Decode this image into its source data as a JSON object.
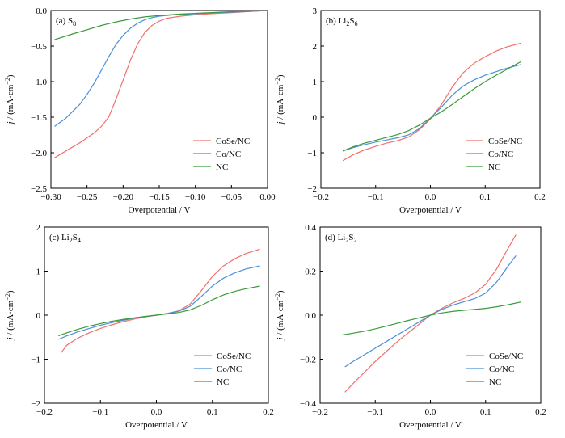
{
  "colors": {
    "CoSe/NC": "#f0706c",
    "Co/NC": "#4a90d9",
    "NC": "#3a9a3a"
  },
  "chart_data": [
    {
      "type": "line",
      "panel_label": "(a) S8",
      "label_prefix": "(a) S",
      "label_subs": [
        "8"
      ],
      "xlabel": "Overpotential / V",
      "ylabel": "j / (mA·cm⁻²)",
      "xlim": [
        -0.3,
        0.0
      ],
      "ylim": [
        -2.5,
        0.0
      ],
      "xticks": [
        -0.3,
        -0.25,
        -0.2,
        -0.15,
        -0.1,
        -0.05,
        0.0
      ],
      "xtick_labels": [
        "−0.30",
        "−0.25",
        "−0.20",
        "−0.15",
        "−0.10",
        "−0.05",
        "0.00"
      ],
      "yticks": [
        -2.5,
        -2.0,
        -1.5,
        -1.0,
        -0.5,
        0.0
      ],
      "ytick_labels": [
        "−2.5",
        "−2.0",
        "−1.5",
        "−1.0",
        "−0.5",
        "0.0"
      ],
      "legend_position": "lower-right",
      "series": [
        {
          "name": "CoSe/NC",
          "x": [
            -0.295,
            -0.28,
            -0.26,
            -0.24,
            -0.23,
            -0.22,
            -0.21,
            -0.2,
            -0.19,
            -0.18,
            -0.17,
            -0.16,
            -0.15,
            -0.14,
            -0.12,
            -0.1,
            -0.08,
            -0.05,
            -0.02,
            0.0
          ],
          "y": [
            -2.07,
            -1.98,
            -1.86,
            -1.72,
            -1.63,
            -1.5,
            -1.25,
            -0.98,
            -0.7,
            -0.47,
            -0.31,
            -0.21,
            -0.15,
            -0.11,
            -0.08,
            -0.06,
            -0.045,
            -0.03,
            -0.01,
            0.0
          ]
        },
        {
          "name": "Co/NC",
          "x": [
            -0.295,
            -0.28,
            -0.26,
            -0.25,
            -0.24,
            -0.23,
            -0.22,
            -0.21,
            -0.2,
            -0.19,
            -0.18,
            -0.17,
            -0.16,
            -0.15,
            -0.13,
            -0.1,
            -0.07,
            -0.04,
            -0.02,
            0.0
          ],
          "y": [
            -1.63,
            -1.52,
            -1.32,
            -1.18,
            -1.02,
            -0.84,
            -0.65,
            -0.48,
            -0.35,
            -0.25,
            -0.18,
            -0.13,
            -0.1,
            -0.08,
            -0.06,
            -0.045,
            -0.03,
            -0.02,
            -0.01,
            0.0
          ]
        },
        {
          "name": "NC",
          "x": [
            -0.295,
            -0.27,
            -0.25,
            -0.23,
            -0.21,
            -0.19,
            -0.17,
            -0.15,
            -0.12,
            -0.09,
            -0.06,
            -0.03,
            0.0
          ],
          "y": [
            -0.41,
            -0.33,
            -0.27,
            -0.21,
            -0.16,
            -0.12,
            -0.09,
            -0.07,
            -0.05,
            -0.035,
            -0.02,
            -0.01,
            0.0
          ]
        }
      ]
    },
    {
      "type": "line",
      "panel_label": "(b) Li2S6",
      "label_prefix": "(b) Li",
      "label_subs": [
        "2",
        "S",
        "6"
      ],
      "xlabel": "Overpotential / V",
      "ylabel": "j / (mA·cm⁻²)",
      "xlim": [
        -0.2,
        0.2
      ],
      "ylim": [
        -2,
        3
      ],
      "xticks": [
        -0.2,
        -0.1,
        0.0,
        0.1,
        0.2
      ],
      "xtick_labels": [
        "−0.2",
        "−0.1",
        "0.0",
        "0.1",
        "0.2"
      ],
      "yticks": [
        -2,
        -1,
        0,
        1,
        2,
        3
      ],
      "ytick_labels": [
        "−2",
        "−1",
        "0",
        "1",
        "2",
        "3"
      ],
      "legend_position": "lower-right",
      "series": [
        {
          "name": "CoSe/NC",
          "x": [
            -0.16,
            -0.14,
            -0.12,
            -0.1,
            -0.08,
            -0.06,
            -0.04,
            -0.02,
            0.0,
            0.02,
            0.04,
            0.06,
            0.08,
            0.1,
            0.12,
            0.14,
            0.165
          ],
          "y": [
            -1.22,
            -1.05,
            -0.92,
            -0.82,
            -0.73,
            -0.66,
            -0.56,
            -0.35,
            -0.05,
            0.35,
            0.85,
            1.25,
            1.52,
            1.7,
            1.86,
            1.98,
            2.08
          ]
        },
        {
          "name": "Co/NC",
          "x": [
            -0.16,
            -0.14,
            -0.12,
            -0.1,
            -0.08,
            -0.06,
            -0.04,
            -0.02,
            0.0,
            0.02,
            0.04,
            0.06,
            0.08,
            0.1,
            0.12,
            0.14,
            0.165
          ],
          "y": [
            -0.95,
            -0.85,
            -0.77,
            -0.7,
            -0.64,
            -0.58,
            -0.5,
            -0.32,
            -0.03,
            0.28,
            0.62,
            0.88,
            1.05,
            1.18,
            1.28,
            1.38,
            1.48
          ]
        },
        {
          "name": "NC",
          "x": [
            -0.16,
            -0.14,
            -0.12,
            -0.1,
            -0.08,
            -0.06,
            -0.04,
            -0.02,
            0.0,
            0.02,
            0.04,
            0.06,
            0.08,
            0.1,
            0.12,
            0.14,
            0.165
          ],
          "y": [
            -0.95,
            -0.83,
            -0.73,
            -0.65,
            -0.57,
            -0.49,
            -0.38,
            -0.22,
            -0.03,
            0.15,
            0.36,
            0.58,
            0.8,
            1.0,
            1.18,
            1.35,
            1.56
          ]
        }
      ]
    },
    {
      "type": "line",
      "panel_label": "(c) Li2S4",
      "label_prefix": "(c) Li",
      "label_subs": [
        "2",
        "S",
        "4"
      ],
      "xlabel": "Overpotential / V",
      "ylabel": "j / (mA·cm⁻²)",
      "xlim": [
        -0.2,
        0.2
      ],
      "ylim": [
        -2,
        2
      ],
      "xticks": [
        -0.2,
        -0.1,
        0.0,
        0.1,
        0.2
      ],
      "xtick_labels": [
        "−0.2",
        "−0.1",
        "0.0",
        "0.1",
        "0.2"
      ],
      "yticks": [
        -2,
        -1,
        0,
        1,
        2
      ],
      "ytick_labels": [
        "−2",
        "−1",
        "0",
        "1",
        "2"
      ],
      "legend_position": "lower-right",
      "series": [
        {
          "name": "CoSe/NC",
          "x": [
            -0.17,
            -0.16,
            -0.14,
            -0.12,
            -0.1,
            -0.08,
            -0.06,
            -0.04,
            -0.02,
            0.0,
            0.02,
            0.04,
            0.06,
            0.08,
            0.1,
            0.12,
            0.14,
            0.16,
            0.185
          ],
          "y": [
            -0.85,
            -0.68,
            -0.52,
            -0.4,
            -0.3,
            -0.22,
            -0.15,
            -0.09,
            -0.04,
            0.0,
            0.04,
            0.1,
            0.25,
            0.55,
            0.88,
            1.12,
            1.28,
            1.4,
            1.5
          ]
        },
        {
          "name": "Co/NC",
          "x": [
            -0.175,
            -0.16,
            -0.14,
            -0.12,
            -0.1,
            -0.08,
            -0.06,
            -0.04,
            -0.02,
            0.0,
            0.02,
            0.04,
            0.06,
            0.08,
            0.1,
            0.12,
            0.14,
            0.16,
            0.185
          ],
          "y": [
            -0.55,
            -0.47,
            -0.38,
            -0.3,
            -0.23,
            -0.17,
            -0.12,
            -0.07,
            -0.03,
            0.0,
            0.04,
            0.09,
            0.2,
            0.42,
            0.66,
            0.84,
            0.96,
            1.05,
            1.12
          ]
        },
        {
          "name": "NC",
          "x": [
            -0.175,
            -0.16,
            -0.14,
            -0.12,
            -0.1,
            -0.08,
            -0.06,
            -0.04,
            -0.02,
            0.0,
            0.02,
            0.04,
            0.06,
            0.08,
            0.1,
            0.12,
            0.14,
            0.16,
            0.185
          ],
          "y": [
            -0.47,
            -0.4,
            -0.32,
            -0.25,
            -0.19,
            -0.14,
            -0.1,
            -0.06,
            -0.03,
            0.0,
            0.03,
            0.06,
            0.12,
            0.22,
            0.35,
            0.46,
            0.54,
            0.6,
            0.66
          ]
        }
      ]
    },
    {
      "type": "line",
      "panel_label": "(d) Li2S2",
      "label_prefix": "(d) Li",
      "label_subs": [
        "2",
        "S",
        "2"
      ],
      "xlabel": "Overpotential / V",
      "ylabel": "j / (mA·cm⁻²)",
      "xlim": [
        -0.2,
        0.2
      ],
      "ylim": [
        -0.4,
        0.4
      ],
      "xticks": [
        -0.2,
        -0.1,
        0.0,
        0.1,
        0.2
      ],
      "xtick_labels": [
        "−0.2",
        "−0.1",
        "0.0",
        "0.1",
        "0.2"
      ],
      "yticks": [
        -0.4,
        -0.2,
        0.0,
        0.2,
        0.4
      ],
      "ytick_labels": [
        "−0.4",
        "−0.2",
        "0.0",
        "0.2",
        "0.4"
      ],
      "legend_position": "lower-right",
      "series": [
        {
          "name": "CoSe/NC",
          "x": [
            -0.155,
            -0.14,
            -0.12,
            -0.1,
            -0.08,
            -0.06,
            -0.04,
            -0.02,
            0.0,
            0.02,
            0.04,
            0.06,
            0.08,
            0.1,
            0.12,
            0.14,
            0.155
          ],
          "y": [
            -0.35,
            -0.31,
            -0.26,
            -0.21,
            -0.165,
            -0.12,
            -0.08,
            -0.04,
            0.0,
            0.03,
            0.055,
            0.075,
            0.1,
            0.14,
            0.21,
            0.3,
            0.365
          ]
        },
        {
          "name": "Co/NC",
          "x": [
            -0.155,
            -0.14,
            -0.12,
            -0.1,
            -0.08,
            -0.06,
            -0.04,
            -0.02,
            0.0,
            0.02,
            0.04,
            0.06,
            0.08,
            0.1,
            0.12,
            0.14,
            0.155
          ],
          "y": [
            -0.235,
            -0.21,
            -0.18,
            -0.15,
            -0.12,
            -0.09,
            -0.06,
            -0.03,
            0.0,
            0.025,
            0.045,
            0.06,
            0.075,
            0.1,
            0.15,
            0.22,
            0.27
          ]
        },
        {
          "name": "NC",
          "x": [
            -0.16,
            -0.14,
            -0.12,
            -0.1,
            -0.08,
            -0.06,
            -0.04,
            -0.02,
            0.0,
            0.02,
            0.04,
            0.06,
            0.08,
            0.1,
            0.12,
            0.14,
            0.165
          ],
          "y": [
            -0.09,
            -0.082,
            -0.073,
            -0.062,
            -0.05,
            -0.037,
            -0.024,
            -0.012,
            0.0,
            0.01,
            0.017,
            0.022,
            0.026,
            0.031,
            0.038,
            0.047,
            0.06
          ]
        }
      ]
    }
  ]
}
